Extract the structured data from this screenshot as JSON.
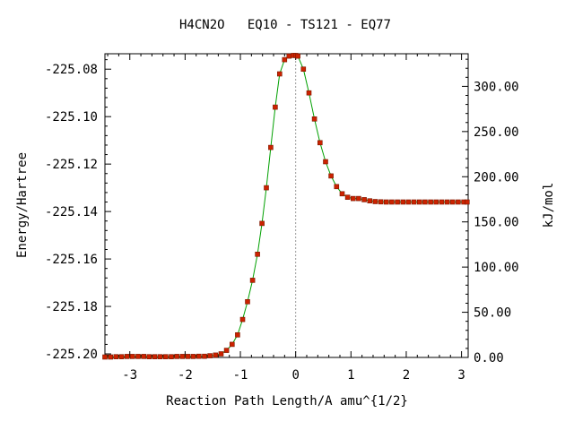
{
  "chart_data": {
    "type": "line",
    "title": "H4CN2O   EQ10 - TS121 - EQ77",
    "xlabel": "Reaction Path Length/A amu^{1/2}",
    "ylabel": "Energy/Hartree",
    "y2label": "kJ/mol",
    "xlim": [
      -3.45,
      3.12
    ],
    "ylim": [
      -225.2015,
      -225.0735
    ],
    "y2lim": [
      0,
      336.1
    ],
    "x_ticks": [
      -3,
      -2,
      -1,
      0,
      1,
      2,
      3
    ],
    "x_tick_labels": [
      "-3",
      "-2",
      "-1",
      "0",
      "1",
      "2",
      "3"
    ],
    "y_ticks": [
      -225.08,
      -225.1,
      -225.12,
      -225.14,
      -225.16,
      -225.18,
      -225.2
    ],
    "y_tick_labels": [
      "-225.08",
      "-225.10",
      "-225.12",
      "-225.14",
      "-225.16",
      "-225.18",
      "-225.20"
    ],
    "y2_ticks": [
      300,
      250,
      200,
      150,
      100,
      50,
      0
    ],
    "y2_tick_labels": [
      "300.00",
      "250.00",
      "200.00",
      "150.00",
      "100.00",
      "50.00",
      "0.00"
    ],
    "ts_marker_x": 0,
    "colors": {
      "curve": "#00a000",
      "points": "#cc2200"
    },
    "series": [
      {
        "x": [
          -3.45,
          -3.35,
          -3.25,
          -3.15,
          -3.05,
          -2.95,
          -2.85,
          -2.75,
          -2.65,
          -2.55,
          -2.45,
          -2.35,
          -2.25,
          -2.15,
          -2.05,
          -1.95,
          -1.85,
          -1.75,
          -1.65,
          -1.55,
          -1.45,
          -1.35,
          -1.25,
          -1.15,
          -1.05,
          -0.96,
          -0.87,
          -0.78,
          -0.69,
          -0.61,
          -0.53,
          -0.45,
          -0.37,
          -0.29,
          -0.2,
          -0.12,
          -0.04,
          0.0,
          0.04,
          0.14,
          0.24,
          0.34,
          0.44,
          0.54,
          0.64,
          0.74,
          0.84,
          0.94,
          1.04,
          1.14,
          1.24,
          1.34,
          1.44,
          1.54,
          1.64,
          1.74,
          1.84,
          1.94,
          2.04,
          2.14,
          2.24,
          2.34,
          2.44,
          2.54,
          2.64,
          2.74,
          2.84,
          2.94,
          3.04,
          3.1
        ],
        "y": [
          -225.2013,
          -225.2013,
          -225.2012,
          -225.2012,
          -225.2011,
          -225.2011,
          -225.2011,
          -225.2011,
          -225.2012,
          -225.2012,
          -225.2012,
          -225.2012,
          -225.2012,
          -225.2011,
          -225.2011,
          -225.2011,
          -225.2011,
          -225.201,
          -225.201,
          -225.2008,
          -225.2005,
          -225.2,
          -225.1985,
          -225.196,
          -225.192,
          -225.1855,
          -225.178,
          -225.169,
          -225.158,
          -225.145,
          -225.13,
          -225.113,
          -225.096,
          -225.082,
          -225.076,
          -225.0745,
          -225.0742,
          -225.0742,
          -225.0745,
          -225.08,
          -225.09,
          -225.101,
          -225.111,
          -225.119,
          -225.125,
          -225.1295,
          -225.1325,
          -225.134,
          -225.1345,
          -225.1345,
          -225.135,
          -225.1355,
          -225.1358,
          -225.1359,
          -225.136,
          -225.136,
          -225.136,
          -225.136,
          -225.136,
          -225.136,
          -225.136,
          -225.136,
          -225.136,
          -225.136,
          -225.136,
          -225.136,
          -225.136,
          -225.136,
          -225.136,
          -225.136
        ]
      }
    ]
  }
}
